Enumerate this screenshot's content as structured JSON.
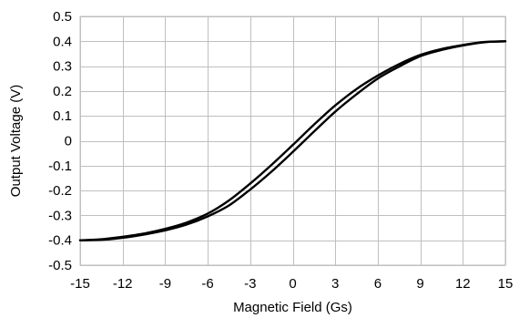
{
  "chart_data": {
    "type": "line",
    "title": "",
    "xlabel": "Magnetic Field (Gs)",
    "ylabel": "Output Voltage (V)",
    "xlim": [
      -15,
      15
    ],
    "ylim": [
      -0.5,
      0.5
    ],
    "xticks": [
      -15,
      -12,
      -9,
      -6,
      -3,
      0,
      3,
      6,
      9,
      12,
      15
    ],
    "yticks": [
      -0.5,
      -0.4,
      -0.3,
      -0.2,
      -0.1,
      0,
      0.1,
      0.2,
      0.3,
      0.4,
      0.5
    ],
    "xtick_labels": [
      "-15",
      "-12",
      "-9",
      "-6",
      "-3",
      "0",
      "3",
      "6",
      "9",
      "12",
      "15"
    ],
    "ytick_labels": [
      "-0.5",
      "-0.4",
      "-0.3",
      "-0.2",
      "-0.1",
      "0",
      "0.1",
      "0.2",
      "0.3",
      "0.4",
      "0.5"
    ],
    "grid": true,
    "legend": "none",
    "line_color": "#000000",
    "grid_color": "#bfbfbf",
    "series": [
      {
        "x": [
          -15,
          -13.5,
          -12,
          -10.5,
          -9,
          -7.5,
          -6,
          -4.5,
          -3,
          -1.5,
          0,
          1.5,
          3,
          4.5,
          6,
          7.5,
          9,
          10.5,
          12,
          13.5,
          15
        ],
        "y": [
          -0.4,
          -0.396,
          -0.386,
          -0.373,
          -0.354,
          -0.329,
          -0.293,
          -0.24,
          -0.172,
          -0.097,
          -0.017,
          0.065,
          0.142,
          0.208,
          0.262,
          0.308,
          0.345,
          0.369,
          0.385,
          0.397,
          0.4
        ]
      },
      {
        "x": [
          -15,
          -13.5,
          -12,
          -10.5,
          -9,
          -7.5,
          -6,
          -4.5,
          -3,
          -1.5,
          0,
          1.5,
          3,
          4.5,
          6,
          7.5,
          9,
          10.5,
          12,
          13.5,
          15
        ],
        "y": [
          -0.4,
          -0.398,
          -0.39,
          -0.377,
          -0.36,
          -0.337,
          -0.304,
          -0.26,
          -0.196,
          -0.124,
          -0.045,
          0.037,
          0.117,
          0.187,
          0.25,
          0.298,
          0.34,
          0.365,
          0.383,
          0.396,
          0.4
        ]
      }
    ]
  }
}
